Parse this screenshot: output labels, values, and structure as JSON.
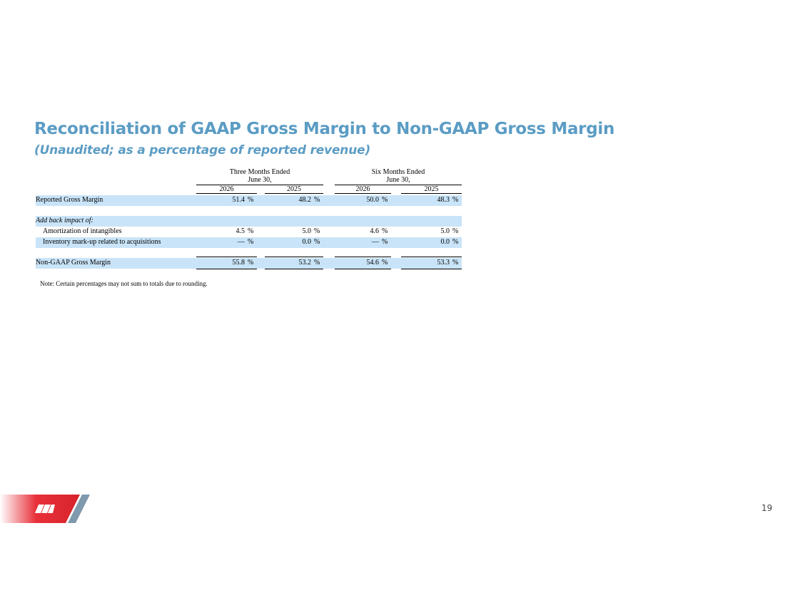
{
  "header": {
    "title": "Reconciliation of GAAP Gross Margin to Non-GAAP Gross Margin",
    "subtitle": "(Unaudited; as a percentage of reported revenue)"
  },
  "table": {
    "column_groups": [
      {
        "label": "Three Months Ended",
        "sublabel": "June 30,"
      },
      {
        "label": "Six Months Ended",
        "sublabel": "June 30,"
      }
    ],
    "years": [
      "2026",
      "2025",
      "2026",
      "2025"
    ],
    "unit": "%",
    "rows": [
      {
        "label": "Reported Gross Margin",
        "values": [
          "51.4",
          "48.2",
          "50.0",
          "48.3"
        ]
      },
      {
        "label": "Add back impact of:"
      },
      {
        "label": "Amortization of intangibles",
        "values": [
          "4.5",
          "5.0",
          "4.6",
          "5.0"
        ]
      },
      {
        "label": "Inventory mark-up related to acquisitions",
        "values": [
          "—",
          "0.0",
          "—",
          "0.0"
        ]
      },
      {
        "label": "Non-GAAP Gross Margin",
        "values": [
          "55.8",
          "53.2",
          "54.6",
          "53.3"
        ]
      }
    ]
  },
  "note": "Note: Certain percentages may not sum to totals due to rounding.",
  "page_number": "19"
}
